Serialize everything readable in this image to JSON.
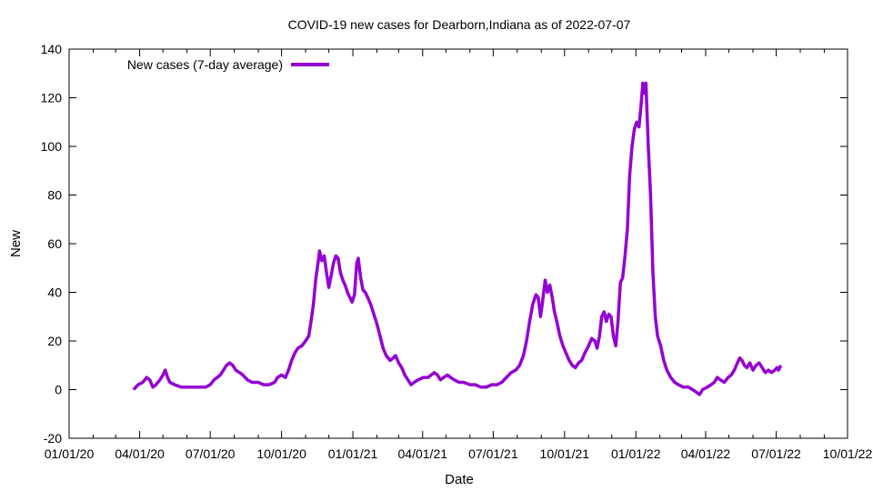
{
  "chart_data": {
    "type": "line",
    "title": "COVID-19 new cases for Dearborn,Indiana as of 2022-07-07",
    "xlabel": "Date",
    "ylabel": "New",
    "ylim": [
      -20,
      140
    ],
    "yticks": [
      -20,
      0,
      20,
      40,
      60,
      80,
      100,
      120,
      140
    ],
    "xlim": [
      "2020-01-01",
      "2022-10-01"
    ],
    "xticks": [
      {
        "label": "01/01/20",
        "date": "2020-01-01"
      },
      {
        "label": "04/01/20",
        "date": "2020-04-01"
      },
      {
        "label": "07/01/20",
        "date": "2020-07-01"
      },
      {
        "label": "10/01/20",
        "date": "2020-10-01"
      },
      {
        "label": "01/01/21",
        "date": "2021-01-01"
      },
      {
        "label": "04/01/21",
        "date": "2021-04-01"
      },
      {
        "label": "07/01/21",
        "date": "2021-07-01"
      },
      {
        "label": "10/01/21",
        "date": "2021-10-01"
      },
      {
        "label": "01/01/22",
        "date": "2022-01-01"
      },
      {
        "label": "04/01/22",
        "date": "2022-04-01"
      },
      {
        "label": "07/01/22",
        "date": "2022-07-01"
      },
      {
        "label": "10/01/22",
        "date": "2022-10-01"
      }
    ],
    "legend_position": "top-left",
    "grid": false,
    "colors": {
      "series": "#9400D3"
    },
    "series": [
      {
        "name": "New cases (7-day average)",
        "points": [
          [
            "2020-03-24",
            0
          ],
          [
            "2020-03-30",
            2
          ],
          [
            "2020-04-05",
            3
          ],
          [
            "2020-04-10",
            5
          ],
          [
            "2020-04-14",
            4
          ],
          [
            "2020-04-18",
            1
          ],
          [
            "2020-04-22",
            2
          ],
          [
            "2020-04-27",
            4
          ],
          [
            "2020-05-01",
            6
          ],
          [
            "2020-05-04",
            8
          ],
          [
            "2020-05-07",
            5
          ],
          [
            "2020-05-10",
            3
          ],
          [
            "2020-05-16",
            2
          ],
          [
            "2020-05-25",
            1
          ],
          [
            "2020-06-05",
            1
          ],
          [
            "2020-06-15",
            1
          ],
          [
            "2020-06-25",
            1
          ],
          [
            "2020-07-01",
            2
          ],
          [
            "2020-07-06",
            4
          ],
          [
            "2020-07-10",
            5
          ],
          [
            "2020-07-14",
            6
          ],
          [
            "2020-07-18",
            8
          ],
          [
            "2020-07-22",
            10
          ],
          [
            "2020-07-26",
            11
          ],
          [
            "2020-07-30",
            10
          ],
          [
            "2020-08-03",
            8
          ],
          [
            "2020-08-08",
            7
          ],
          [
            "2020-08-12",
            6
          ],
          [
            "2020-08-18",
            4
          ],
          [
            "2020-08-24",
            3
          ],
          [
            "2020-09-01",
            3
          ],
          [
            "2020-09-08",
            2
          ],
          [
            "2020-09-15",
            2
          ],
          [
            "2020-09-22",
            3
          ],
          [
            "2020-09-26",
            5
          ],
          [
            "2020-10-01",
            6
          ],
          [
            "2020-10-06",
            5
          ],
          [
            "2020-10-10",
            8
          ],
          [
            "2020-10-14",
            12
          ],
          [
            "2020-10-18",
            15
          ],
          [
            "2020-10-22",
            17
          ],
          [
            "2020-10-27",
            18
          ],
          [
            "2020-11-01",
            20
          ],
          [
            "2020-11-05",
            22
          ],
          [
            "2020-11-08",
            28
          ],
          [
            "2020-11-11",
            35
          ],
          [
            "2020-11-14",
            45
          ],
          [
            "2020-11-17",
            52
          ],
          [
            "2020-11-19",
            57
          ],
          [
            "2020-11-22",
            53
          ],
          [
            "2020-11-25",
            55
          ],
          [
            "2020-11-28",
            48
          ],
          [
            "2020-12-01",
            42
          ],
          [
            "2020-12-04",
            47
          ],
          [
            "2020-12-07",
            52
          ],
          [
            "2020-12-10",
            55
          ],
          [
            "2020-12-13",
            54
          ],
          [
            "2020-12-16",
            48
          ],
          [
            "2020-12-19",
            45
          ],
          [
            "2020-12-22",
            43
          ],
          [
            "2020-12-25",
            40
          ],
          [
            "2020-12-28",
            38
          ],
          [
            "2020-12-31",
            36
          ],
          [
            "2021-01-03",
            39
          ],
          [
            "2021-01-06",
            52
          ],
          [
            "2021-01-08",
            54
          ],
          [
            "2021-01-11",
            46
          ],
          [
            "2021-01-14",
            41
          ],
          [
            "2021-01-17",
            40
          ],
          [
            "2021-01-20",
            38
          ],
          [
            "2021-01-24",
            35
          ],
          [
            "2021-01-28",
            31
          ],
          [
            "2021-02-01",
            27
          ],
          [
            "2021-02-05",
            22
          ],
          [
            "2021-02-09",
            17
          ],
          [
            "2021-02-13",
            14
          ],
          [
            "2021-02-18",
            12
          ],
          [
            "2021-02-22",
            13
          ],
          [
            "2021-02-25",
            14
          ],
          [
            "2021-03-01",
            11
          ],
          [
            "2021-03-05",
            9
          ],
          [
            "2021-03-09",
            6
          ],
          [
            "2021-03-13",
            4
          ],
          [
            "2021-03-17",
            2
          ],
          [
            "2021-03-21",
            3
          ],
          [
            "2021-03-26",
            4
          ],
          [
            "2021-04-02",
            5
          ],
          [
            "2021-04-08",
            5
          ],
          [
            "2021-04-12",
            6
          ],
          [
            "2021-04-16",
            7
          ],
          [
            "2021-04-20",
            6
          ],
          [
            "2021-04-24",
            4
          ],
          [
            "2021-04-28",
            5
          ],
          [
            "2021-05-03",
            6
          ],
          [
            "2021-05-07",
            5
          ],
          [
            "2021-05-12",
            4
          ],
          [
            "2021-05-18",
            3
          ],
          [
            "2021-05-24",
            3
          ],
          [
            "2021-06-01",
            2
          ],
          [
            "2021-06-08",
            2
          ],
          [
            "2021-06-15",
            1
          ],
          [
            "2021-06-22",
            1
          ],
          [
            "2021-06-29",
            2
          ],
          [
            "2021-07-06",
            2
          ],
          [
            "2021-07-12",
            3
          ],
          [
            "2021-07-18",
            5
          ],
          [
            "2021-07-24",
            7
          ],
          [
            "2021-07-30",
            8
          ],
          [
            "2021-08-04",
            10
          ],
          [
            "2021-08-09",
            14
          ],
          [
            "2021-08-13",
            20
          ],
          [
            "2021-08-17",
            28
          ],
          [
            "2021-08-21",
            35
          ],
          [
            "2021-08-25",
            39
          ],
          [
            "2021-08-28",
            38
          ],
          [
            "2021-08-31",
            30
          ],
          [
            "2021-09-03",
            37
          ],
          [
            "2021-09-06",
            45
          ],
          [
            "2021-09-09",
            40
          ],
          [
            "2021-09-12",
            43
          ],
          [
            "2021-09-15",
            38
          ],
          [
            "2021-09-18",
            32
          ],
          [
            "2021-09-21",
            28
          ],
          [
            "2021-09-25",
            22
          ],
          [
            "2021-09-29",
            18
          ],
          [
            "2021-10-03",
            15
          ],
          [
            "2021-10-07",
            12
          ],
          [
            "2021-10-11",
            10
          ],
          [
            "2021-10-15",
            9
          ],
          [
            "2021-10-19",
            11
          ],
          [
            "2021-10-23",
            12
          ],
          [
            "2021-10-27",
            15
          ],
          [
            "2021-11-01",
            18
          ],
          [
            "2021-11-05",
            21
          ],
          [
            "2021-11-09",
            20
          ],
          [
            "2021-11-12",
            17
          ],
          [
            "2021-11-15",
            22
          ],
          [
            "2021-11-18",
            30
          ],
          [
            "2021-11-21",
            32
          ],
          [
            "2021-11-24",
            28
          ],
          [
            "2021-11-27",
            31
          ],
          [
            "2021-11-30",
            30
          ],
          [
            "2021-12-03",
            22
          ],
          [
            "2021-12-06",
            18
          ],
          [
            "2021-12-09",
            28
          ],
          [
            "2021-12-12",
            44
          ],
          [
            "2021-12-15",
            46
          ],
          [
            "2021-12-18",
            55
          ],
          [
            "2021-12-21",
            66
          ],
          [
            "2021-12-24",
            88
          ],
          [
            "2021-12-27",
            100
          ],
          [
            "2021-12-30",
            107
          ],
          [
            "2022-01-02",
            110
          ],
          [
            "2022-01-05",
            108
          ],
          [
            "2022-01-08",
            118
          ],
          [
            "2022-01-10",
            126
          ],
          [
            "2022-01-12",
            122
          ],
          [
            "2022-01-14",
            126
          ],
          [
            "2022-01-17",
            100
          ],
          [
            "2022-01-20",
            80
          ],
          [
            "2022-01-23",
            48
          ],
          [
            "2022-01-26",
            30
          ],
          [
            "2022-01-29",
            22
          ],
          [
            "2022-02-02",
            18
          ],
          [
            "2022-02-06",
            12
          ],
          [
            "2022-02-10",
            8
          ],
          [
            "2022-02-15",
            5
          ],
          [
            "2022-02-20",
            3
          ],
          [
            "2022-02-25",
            2
          ],
          [
            "2022-03-03",
            1
          ],
          [
            "2022-03-10",
            1
          ],
          [
            "2022-03-15",
            0
          ],
          [
            "2022-03-20",
            -1
          ],
          [
            "2022-03-24",
            -2
          ],
          [
            "2022-03-28",
            0
          ],
          [
            "2022-04-03",
            1
          ],
          [
            "2022-04-08",
            2
          ],
          [
            "2022-04-12",
            3
          ],
          [
            "2022-04-16",
            5
          ],
          [
            "2022-04-20",
            4
          ],
          [
            "2022-04-25",
            3
          ],
          [
            "2022-04-30",
            5
          ],
          [
            "2022-05-04",
            6
          ],
          [
            "2022-05-08",
            8
          ],
          [
            "2022-05-12",
            11
          ],
          [
            "2022-05-15",
            13
          ],
          [
            "2022-05-18",
            12
          ],
          [
            "2022-05-21",
            10
          ],
          [
            "2022-05-24",
            9
          ],
          [
            "2022-05-28",
            11
          ],
          [
            "2022-06-01",
            8
          ],
          [
            "2022-06-05",
            10
          ],
          [
            "2022-06-09",
            11
          ],
          [
            "2022-06-13",
            9
          ],
          [
            "2022-06-17",
            7
          ],
          [
            "2022-06-21",
            8
          ],
          [
            "2022-06-25",
            7
          ],
          [
            "2022-06-29",
            8
          ],
          [
            "2022-07-02",
            9
          ],
          [
            "2022-07-04",
            8
          ],
          [
            "2022-07-07",
            10
          ]
        ]
      }
    ]
  }
}
